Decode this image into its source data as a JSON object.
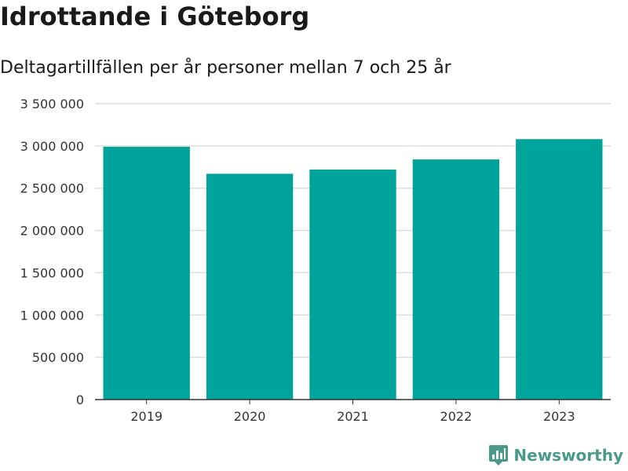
{
  "header": {
    "title": "Idrottande i Göteborg",
    "subtitle": "Deltagartillfällen per år personer mellan 7 och 25 år"
  },
  "chart_data": {
    "type": "bar",
    "categories": [
      "2019",
      "2020",
      "2021",
      "2022",
      "2023"
    ],
    "values": [
      2990000,
      2670000,
      2720000,
      2840000,
      3080000
    ],
    "title": "Idrottande i Göteborg",
    "subtitle": "Deltagartillfällen per år personer mellan 7 och 25 år",
    "xlabel": "",
    "ylabel": "",
    "ylim": [
      0,
      3500000
    ],
    "yticks": [
      0,
      500000,
      1000000,
      1500000,
      2000000,
      2500000,
      3000000,
      3500000
    ],
    "ytick_labels": [
      "0",
      "500 000",
      "1 000 000",
      "1 500 000",
      "2 000 000",
      "2 500 000",
      "3 000 000",
      "3 500 000"
    ],
    "grid": true,
    "bar_color": "#00a39a",
    "grid_color": "#dddddd",
    "axis_color": "#333333"
  },
  "brand": {
    "name": "Newsworthy",
    "color": "#4a9a8c",
    "icon": "newsworthy-logo-icon"
  }
}
